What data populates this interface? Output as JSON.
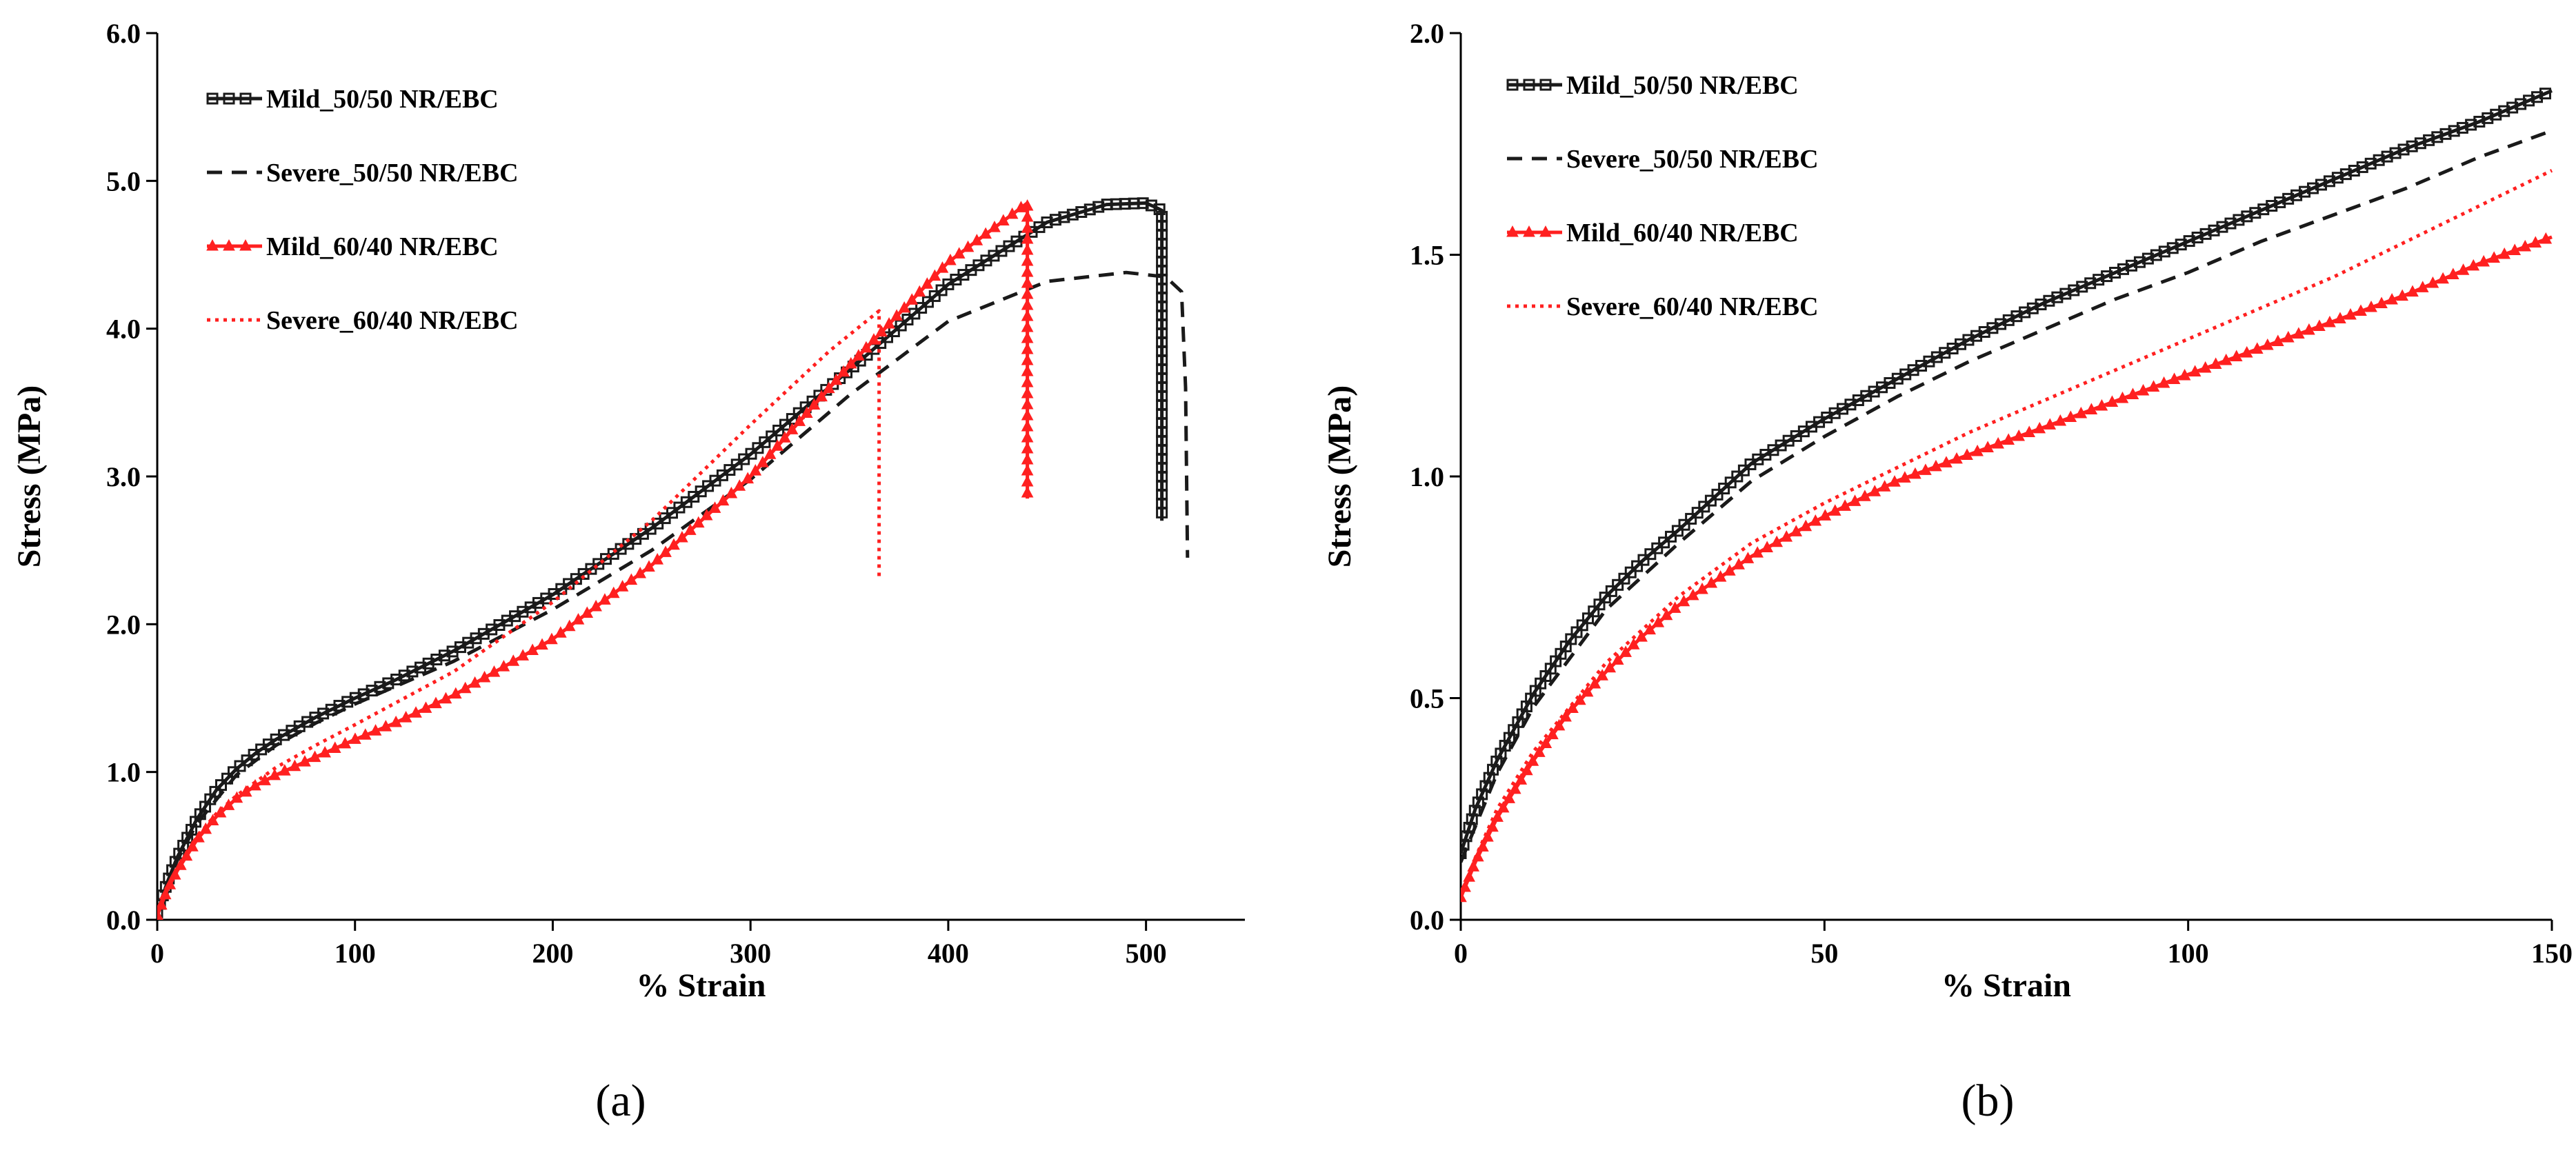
{
  "chart_data": [
    {
      "panel_label": "(a)",
      "type": "line",
      "xlabel": "% Strain",
      "ylabel": "Stress (MPa)",
      "xlim": [
        0,
        550
      ],
      "ylim": [
        0,
        6
      ],
      "xticks": [
        0,
        100,
        200,
        300,
        400,
        500
      ],
      "xtick_labels": [
        "0",
        "100",
        "200",
        "300",
        "400",
        "500"
      ],
      "yticks": [
        0,
        1,
        2,
        3,
        4,
        5,
        6
      ],
      "ytick_labels": [
        "0.0",
        "1.0",
        "2.0",
        "3.0",
        "4.0",
        "5.0",
        "6.0"
      ],
      "grid": false,
      "legend_position": "top-left",
      "series": [
        {
          "name": "Mild_50/50 NR/EBC",
          "color": "#1a1a1a",
          "line_style": "solid",
          "marker": "open-square",
          "x": [
            0,
            5,
            10,
            20,
            30,
            40,
            50,
            60,
            80,
            100,
            120,
            150,
            200,
            250,
            300,
            350,
            400,
            450,
            480,
            500,
            505,
            508,
            508,
            508
          ],
          "y": [
            0.05,
            0.25,
            0.42,
            0.68,
            0.88,
            1.02,
            1.13,
            1.22,
            1.37,
            1.5,
            1.62,
            1.82,
            2.2,
            2.65,
            3.15,
            3.72,
            4.3,
            4.72,
            4.84,
            4.85,
            4.82,
            4.8,
            3.9,
            2.7
          ]
        },
        {
          "name": "Severe_50/50 NR/EBC",
          "color": "#1a1a1a",
          "line_style": "dashed",
          "marker": "none",
          "x": [
            0,
            10,
            20,
            40,
            60,
            80,
            100,
            150,
            200,
            250,
            300,
            350,
            400,
            450,
            490,
            510,
            518,
            520,
            521
          ],
          "y": [
            0.05,
            0.4,
            0.65,
            0.98,
            1.18,
            1.33,
            1.46,
            1.75,
            2.1,
            2.5,
            2.98,
            3.55,
            4.05,
            4.32,
            4.38,
            4.35,
            4.25,
            3.6,
            2.45
          ]
        },
        {
          "name": "Mild_60/40 NR/EBC",
          "color": "#ff2020",
          "line_style": "solid",
          "marker": "filled-triangle",
          "x": [
            0,
            5,
            10,
            20,
            30,
            40,
            50,
            60,
            80,
            100,
            120,
            150,
            200,
            250,
            300,
            350,
            400,
            440,
            440,
            440
          ],
          "y": [
            0.03,
            0.2,
            0.33,
            0.54,
            0.7,
            0.82,
            0.91,
            0.98,
            1.1,
            1.22,
            1.33,
            1.52,
            1.9,
            2.4,
            3.0,
            3.75,
            4.45,
            4.85,
            3.8,
            2.85
          ]
        },
        {
          "name": "Severe_60/40 NR/EBC",
          "color": "#ff2020",
          "line_style": "dotted",
          "marker": "none",
          "x": [
            0,
            5,
            10,
            20,
            30,
            40,
            60,
            80,
            100,
            150,
            200,
            250,
            300,
            340,
            365,
            365
          ],
          "y": [
            0.03,
            0.2,
            0.34,
            0.56,
            0.72,
            0.84,
            1.03,
            1.18,
            1.32,
            1.68,
            2.15,
            2.7,
            3.35,
            3.85,
            4.12,
            2.32
          ]
        }
      ]
    },
    {
      "panel_label": "(b)",
      "type": "line",
      "xlabel": "% Strain",
      "ylabel": "Stress (MPa)",
      "xlim": [
        0,
        150
      ],
      "ylim": [
        0,
        2
      ],
      "xticks": [
        0,
        50,
        100,
        150
      ],
      "xtick_labels": [
        "0",
        "50",
        "100",
        "150"
      ],
      "yticks": [
        0,
        0.5,
        1,
        1.5,
        2
      ],
      "ytick_labels": [
        "0.0",
        "0.5",
        "1.0",
        "1.5",
        "2.0"
      ],
      "grid": false,
      "legend_position": "top-left",
      "series": [
        {
          "name": "Mild_50/50 NR/EBC",
          "color": "#1a1a1a",
          "line_style": "solid",
          "marker": "open-square",
          "x": [
            0,
            2,
            5,
            10,
            15,
            20,
            25,
            30,
            40,
            50,
            60,
            70,
            80,
            90,
            100,
            110,
            120,
            130,
            140,
            150
          ],
          "y": [
            0.15,
            0.25,
            0.36,
            0.51,
            0.63,
            0.73,
            0.81,
            0.88,
            1.03,
            1.13,
            1.22,
            1.31,
            1.39,
            1.46,
            1.53,
            1.6,
            1.67,
            1.74,
            1.8,
            1.87
          ]
        },
        {
          "name": "Severe_50/50 NR/EBC",
          "color": "#1a1a1a",
          "line_style": "dashed",
          "marker": "none",
          "x": [
            0,
            5,
            10,
            20,
            30,
            40,
            50,
            60,
            70,
            80,
            90,
            100,
            110,
            120,
            130,
            140,
            150
          ],
          "y": [
            0.13,
            0.33,
            0.48,
            0.7,
            0.85,
            0.99,
            1.09,
            1.18,
            1.26,
            1.33,
            1.4,
            1.46,
            1.53,
            1.59,
            1.65,
            1.72,
            1.78
          ]
        },
        {
          "name": "Mild_60/40 NR/EBC",
          "color": "#ff2020",
          "line_style": "solid",
          "marker": "filled-triangle",
          "x": [
            0,
            2,
            5,
            10,
            15,
            20,
            25,
            30,
            40,
            50,
            60,
            70,
            80,
            90,
            100,
            110,
            120,
            130,
            140,
            150
          ],
          "y": [
            0.05,
            0.13,
            0.23,
            0.36,
            0.47,
            0.56,
            0.64,
            0.71,
            0.82,
            0.91,
            0.99,
            1.05,
            1.11,
            1.17,
            1.23,
            1.29,
            1.35,
            1.41,
            1.48,
            1.54
          ]
        },
        {
          "name": "Severe_60/40 NR/EBC",
          "color": "#ff2020",
          "line_style": "dotted",
          "marker": "none",
          "x": [
            0,
            2,
            5,
            10,
            20,
            30,
            40,
            50,
            60,
            70,
            80,
            90,
            100,
            110,
            120,
            130,
            140,
            150
          ],
          "y": [
            0.05,
            0.14,
            0.25,
            0.38,
            0.58,
            0.73,
            0.85,
            0.94,
            1.02,
            1.1,
            1.17,
            1.24,
            1.31,
            1.38,
            1.45,
            1.53,
            1.61,
            1.69
          ]
        }
      ]
    }
  ]
}
